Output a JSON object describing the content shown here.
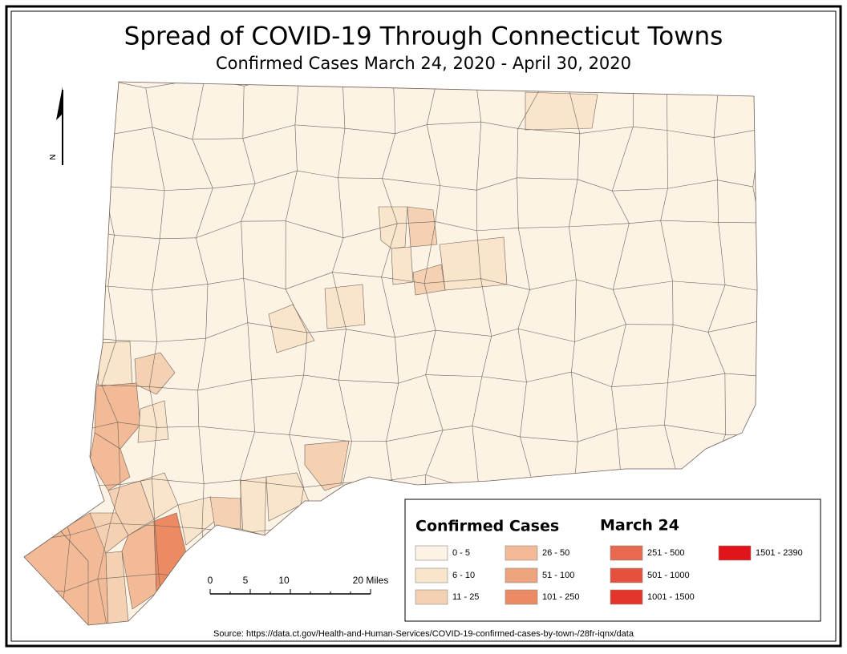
{
  "title": "Spread of COVID-19 Through Connecticut Towns",
  "subtitle": "Confirmed Cases March 24, 2020 - April 30, 2020",
  "north_arrow": "N",
  "legend": {
    "title": "Confirmed Cases",
    "date": "March 24",
    "items": [
      {
        "label": "0 - 5",
        "color": "#fdf3e4"
      },
      {
        "label": "6 - 10",
        "color": "#f9e4cc"
      },
      {
        "label": "11 - 25",
        "color": "#f5d1b3"
      },
      {
        "label": "26 - 50",
        "color": "#f2ba96"
      },
      {
        "label": "51 - 100",
        "color": "#eea47e"
      },
      {
        "label": "101 - 250",
        "color": "#eb8a63"
      },
      {
        "label": "251 - 500",
        "color": "#e8694d"
      },
      {
        "label": "501 - 1000",
        "color": "#e5513d"
      },
      {
        "label": "1001 - 1500",
        "color": "#e3352a"
      },
      {
        "label": "1501 - 2390",
        "color": "#e0141a"
      }
    ]
  },
  "scale_bar": {
    "labels": [
      "0",
      "5",
      "10",
      "20 Miles"
    ]
  },
  "source": "Source: https://data.ct.gov/Health-and-Human-Services/COVID-19-confirmed-cases-by-town-/28fr-iqnx/data"
}
